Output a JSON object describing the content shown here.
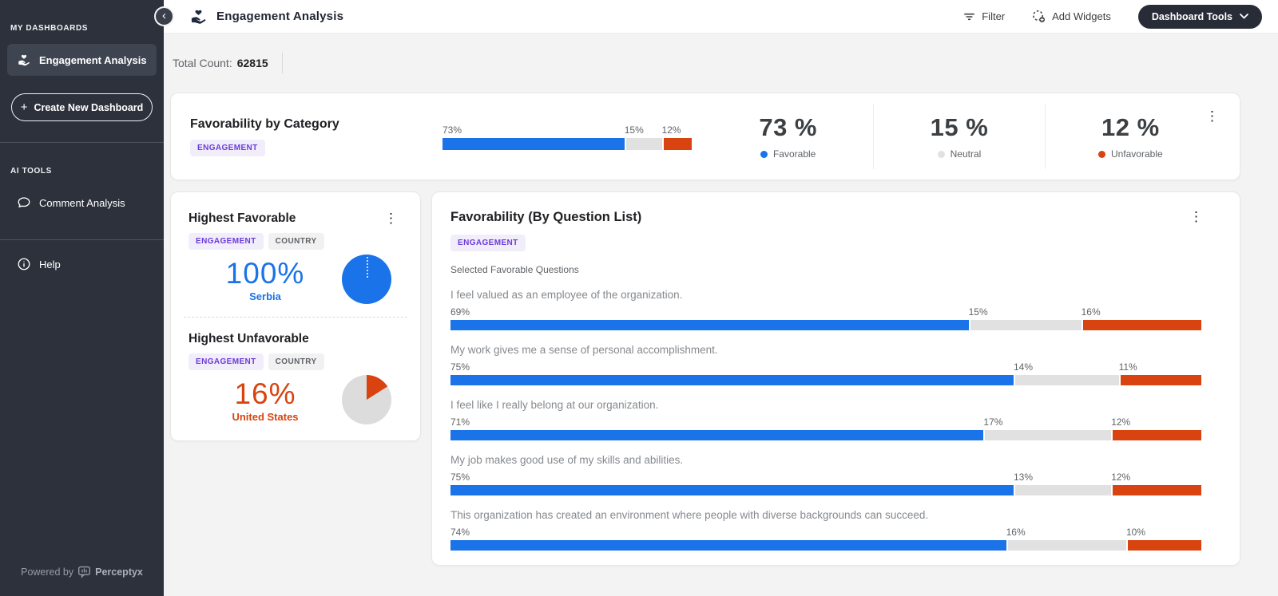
{
  "icons": {
    "kebab": "⋮",
    "back": "‹",
    "plus": "+"
  },
  "colors": {
    "favorable": "#1a73e8",
    "neutral": "#e1e1e1",
    "unfavorable": "#d8430f",
    "accent_purple": "#6b3cd8",
    "sidebar_bg": "#2c313b"
  },
  "sidebar": {
    "section1": "MY DASHBOARDS",
    "active_item": "Engagement Analysis",
    "create_button": "Create New Dashboard",
    "section2": "AI TOOLS",
    "items": [
      {
        "label": "Comment Analysis",
        "icon": "comment-icon"
      },
      {
        "label": "Help",
        "icon": "help-icon"
      }
    ],
    "powered_by": "Powered by",
    "brand": "Perceptyx"
  },
  "header": {
    "title": "Engagement Analysis",
    "filter": "Filter",
    "add_widgets": "Add Widgets",
    "dashboard_tools": "Dashboard Tools"
  },
  "total_count": {
    "label": "Total Count:",
    "value": "62815"
  },
  "category_card": {
    "title": "Favorability by Category",
    "tag": "ENGAGEMENT",
    "bar": {
      "favorable": 73,
      "neutral": 15,
      "unfavorable": 12
    },
    "stats": [
      {
        "value": "73 %",
        "label": "Favorable",
        "color": "#1a73e8"
      },
      {
        "value": "15 %",
        "label": "Neutral",
        "color": "#e1e1e1"
      },
      {
        "value": "12 %",
        "label": "Unfavorable",
        "color": "#d8430f"
      }
    ]
  },
  "highlight_card": {
    "favorable": {
      "title": "Highest Favorable",
      "tags": [
        "ENGAGEMENT",
        "COUNTRY"
      ],
      "value": "100%",
      "label": "Serbia",
      "pie_pct": 100
    },
    "unfavorable": {
      "title": "Highest Unfavorable",
      "tags": [
        "ENGAGEMENT",
        "COUNTRY"
      ],
      "value": "16%",
      "label": "United States",
      "pie_pct": 16
    }
  },
  "question_card": {
    "title": "Favorability (By Question List)",
    "tag": "ENGAGEMENT",
    "subtitle": "Selected Favorable Questions",
    "questions": [
      {
        "text": "I feel valued as an employee of the organization.",
        "favorable": 69,
        "neutral": 15,
        "unfavorable": 16
      },
      {
        "text": "My work gives me a sense of personal accomplishment.",
        "favorable": 75,
        "neutral": 14,
        "unfavorable": 11
      },
      {
        "text": "I feel like I really belong at our organization.",
        "favorable": 71,
        "neutral": 17,
        "unfavorable": 12
      },
      {
        "text": "My job makes good use of my skills and abilities.",
        "favorable": 75,
        "neutral": 13,
        "unfavorable": 12
      },
      {
        "text": "This organization has created an environment where people with diverse backgrounds can succeed.",
        "favorable": 74,
        "neutral": 16,
        "unfavorable": 10
      }
    ]
  }
}
